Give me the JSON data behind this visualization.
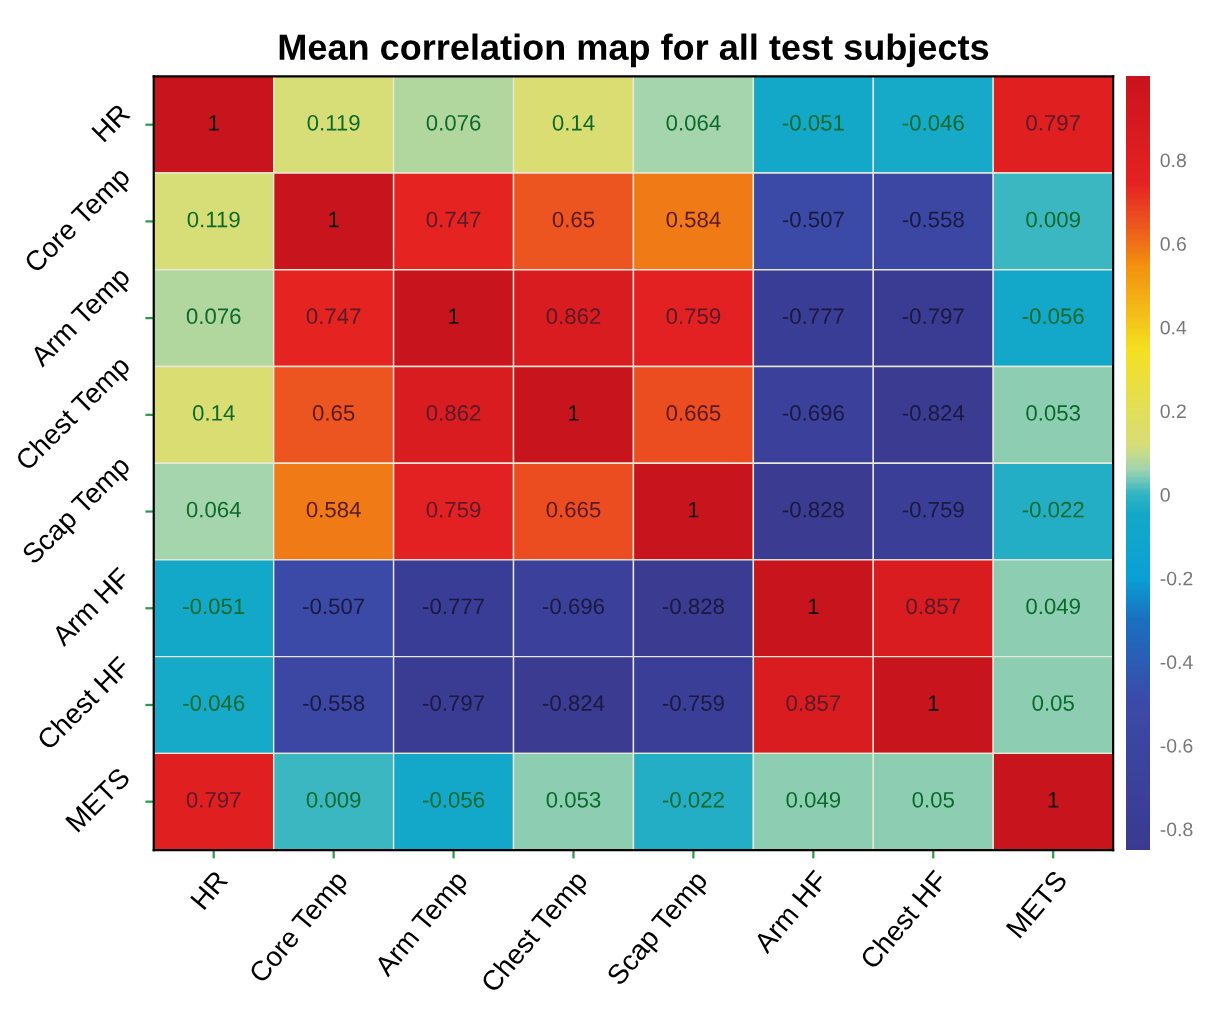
{
  "chart_data": {
    "type": "heatmap",
    "title": "Mean correlation map for all test subjects",
    "categories": [
      "HR",
      "Core Temp",
      "Arm Temp",
      "Chest Temp",
      "Scap Temp",
      "Arm HF",
      "Chest HF",
      "METS"
    ],
    "y_categories": [
      "HR",
      "Core Temp",
      "Arm Temp",
      "Chest Temp",
      "Scap Temp",
      "Arm HF",
      "Chest HF",
      "METS"
    ],
    "cells": [
      [
        1,
        0.119,
        0.076,
        0.14,
        0.064,
        -0.051,
        -0.046,
        0.797
      ],
      [
        0.119,
        1,
        0.747,
        0.65,
        0.584,
        -0.507,
        -0.558,
        0.009
      ],
      [
        0.076,
        0.747,
        1,
        0.862,
        0.759,
        -0.777,
        -0.797,
        -0.056
      ],
      [
        0.14,
        0.65,
        0.862,
        1,
        0.665,
        -0.696,
        -0.824,
        0.053
      ],
      [
        0.064,
        0.584,
        0.759,
        0.665,
        1,
        -0.828,
        -0.759,
        -0.022
      ],
      [
        -0.051,
        -0.507,
        -0.777,
        -0.696,
        -0.828,
        1,
        0.857,
        0.049
      ],
      [
        -0.046,
        -0.558,
        -0.797,
        -0.824,
        -0.759,
        0.857,
        1,
        0.05
      ],
      [
        0.797,
        0.009,
        -0.056,
        0.053,
        -0.022,
        0.049,
        0.05,
        1
      ]
    ],
    "data_labels": true,
    "clim": [
      -0.85,
      1
    ],
    "cticks": [
      -0.8,
      -0.6,
      -0.4,
      -0.2,
      0,
      0.2,
      0.4,
      0.6,
      0.8
    ]
  }
}
